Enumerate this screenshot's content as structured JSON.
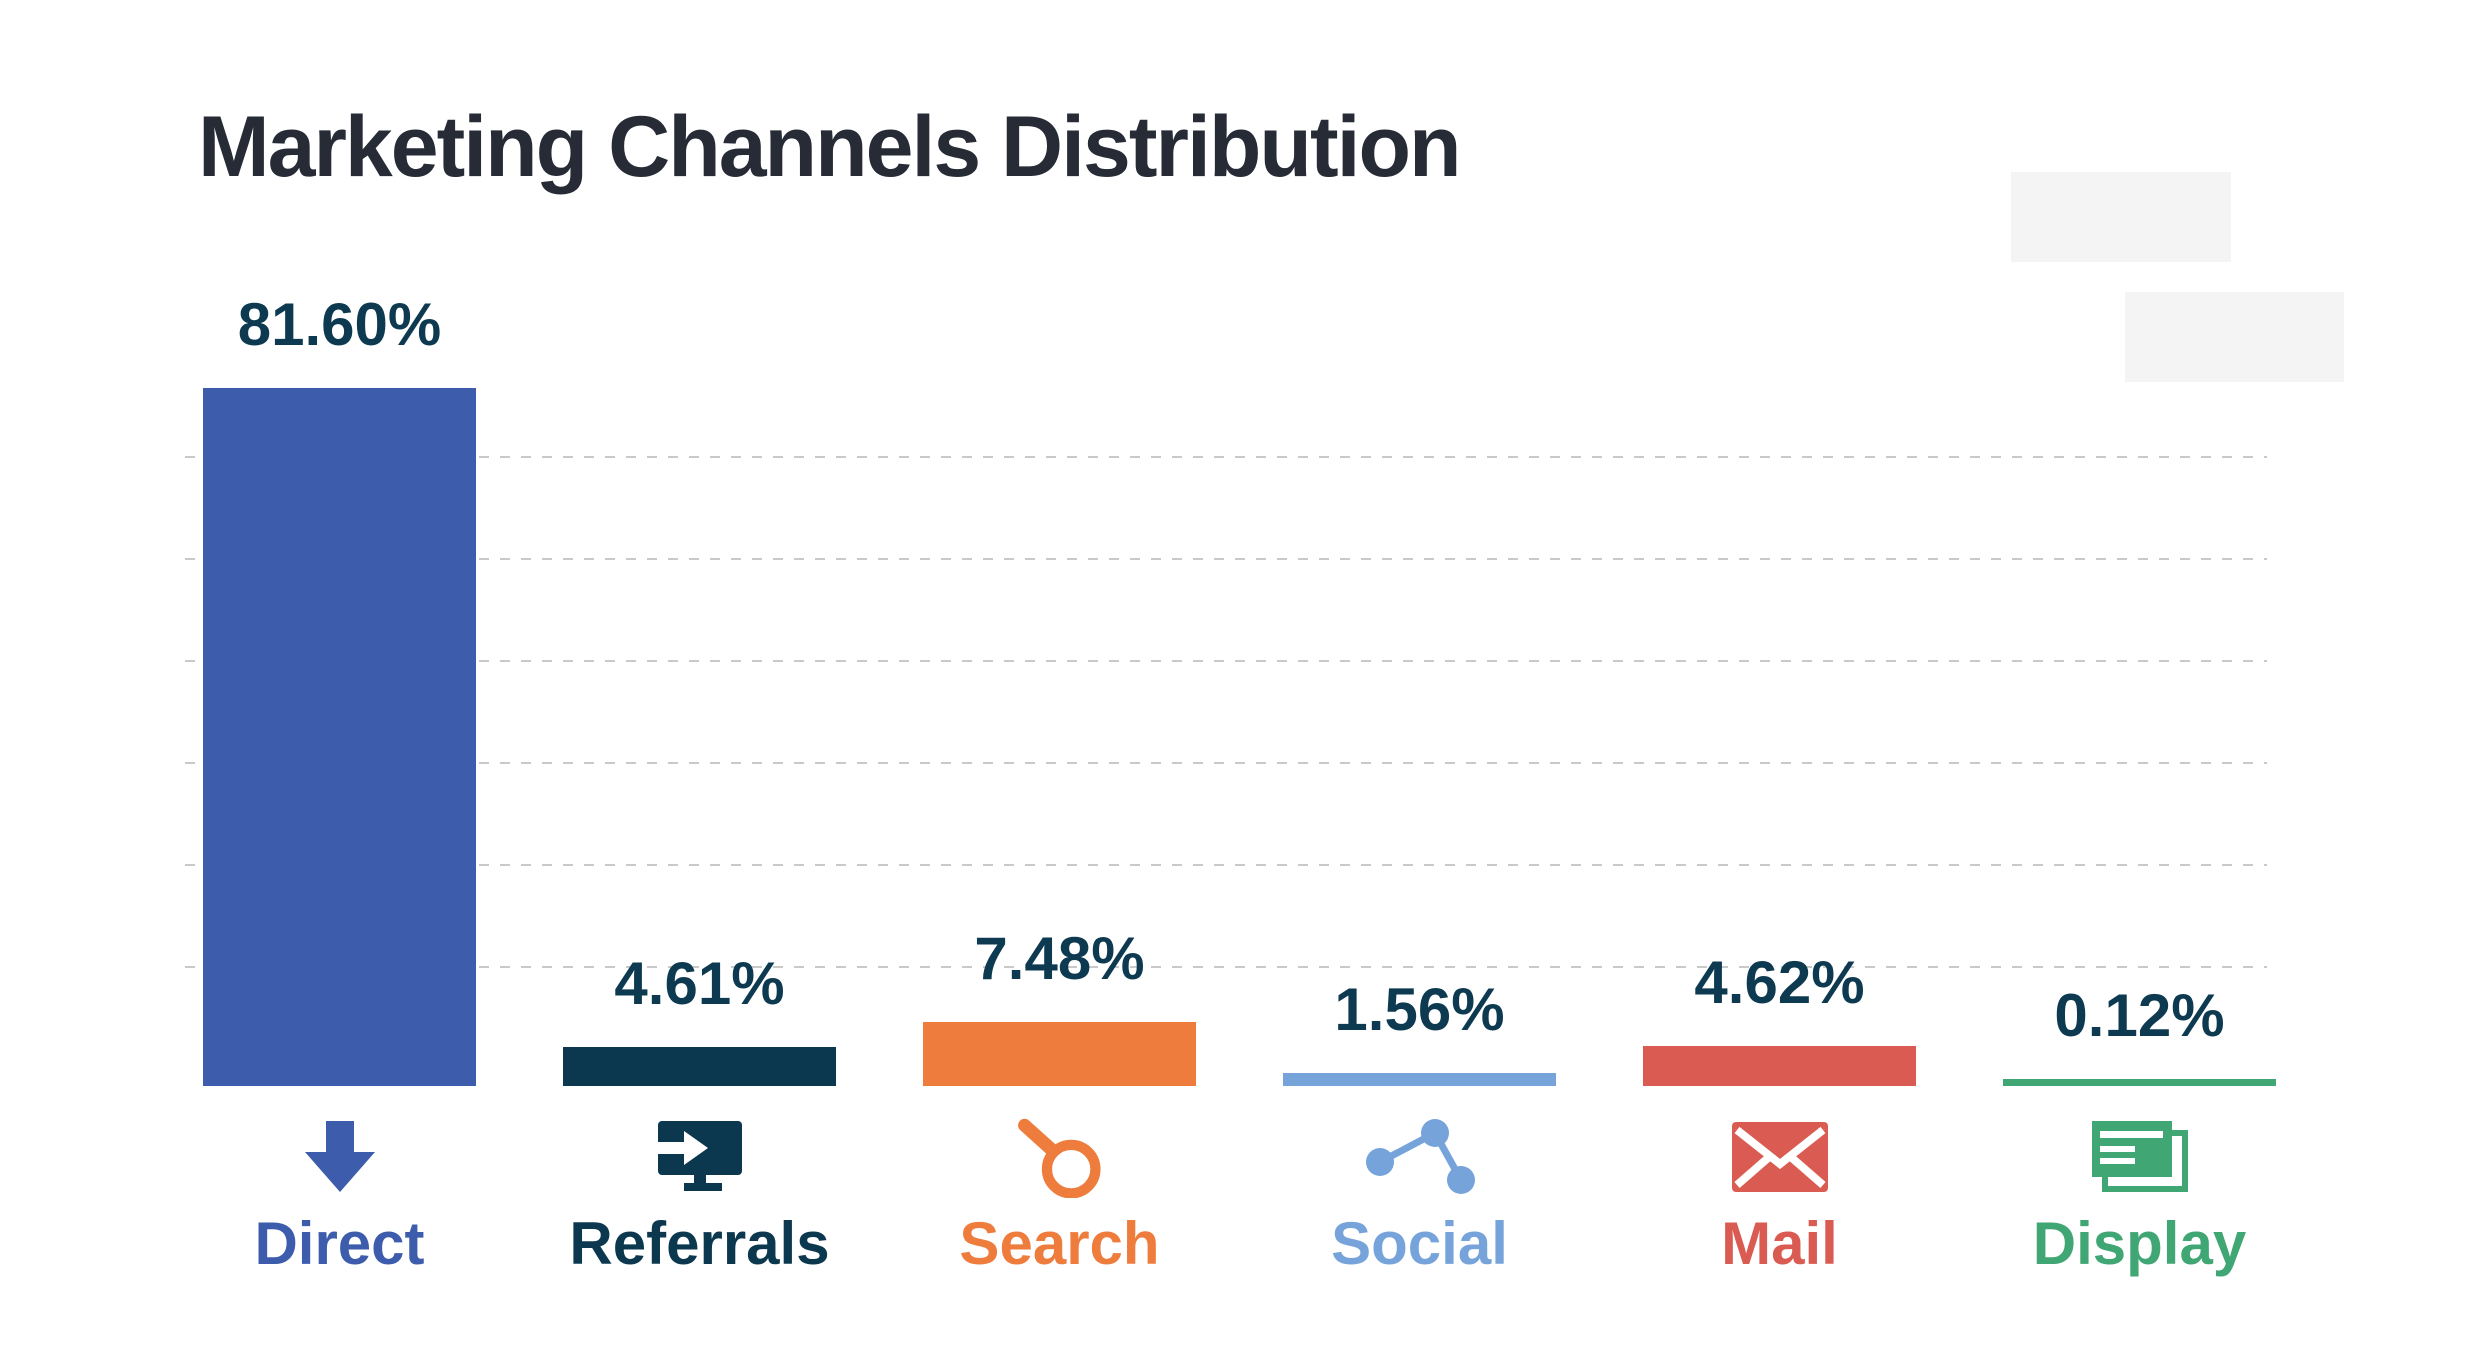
{
  "chart_data": {
    "type": "bar",
    "title": "Marketing Channels Distribution",
    "categories": [
      "Direct",
      "Referrals",
      "Search",
      "Social",
      "Mail",
      "Display"
    ],
    "values": [
      81.6,
      4.61,
      7.48,
      1.56,
      4.62,
      0.12
    ],
    "value_labels": [
      "81.60%",
      "4.61%",
      "7.48%",
      "1.56%",
      "4.62%",
      "0.12%"
    ],
    "unit": "%",
    "series_colors": [
      "#3d5dac",
      "#0b384e",
      "#ee7c3d",
      "#76a3da",
      "#d95b51",
      "#3fa674"
    ],
    "icons": [
      "arrow-down-icon",
      "monitor-referral-icon",
      "magnifier-search-icon",
      "share-nodes-icon",
      "envelope-mail-icon",
      "display-ad-icon"
    ],
    "xlabel": "",
    "ylabel": "",
    "ylim": [
      0,
      100
    ],
    "grid": {
      "orientation": "horizontal",
      "style": "dashed",
      "count": 6
    },
    "legend": "none",
    "title_color": "#262b36",
    "value_label_color": "#0d3a50",
    "gridline_color": "#c9c9c9",
    "background": "#ffffff"
  },
  "decor": {
    "placeholder_boxes": [
      {
        "color": "#f4f4f4"
      },
      {
        "color": "#f4f4f4"
      }
    ]
  }
}
